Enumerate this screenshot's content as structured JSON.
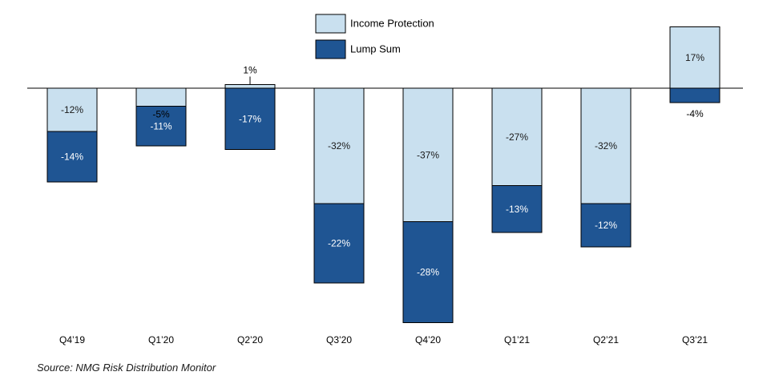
{
  "chart_data": {
    "type": "bar",
    "stacked": true,
    "categories": [
      "Q4’19",
      "Q1’20",
      "Q2’20",
      "Q3’20",
      "Q4’20",
      "Q1’21",
      "Q2’21",
      "Q3’21"
    ],
    "series": [
      {
        "name": "Income Protection",
        "color": "#c9e0ef",
        "values": [
          -12,
          -5,
          1,
          -32,
          -37,
          -27,
          -32,
          17
        ],
        "labels": [
          "-12%",
          "-5%",
          "1%",
          "-32%",
          "-37%",
          "-27%",
          "-32%",
          "17%"
        ]
      },
      {
        "name": "Lump Sum",
        "color": "#1f5593",
        "values": [
          -14,
          -11,
          -17,
          -22,
          -28,
          -13,
          -12,
          -4
        ],
        "labels": [
          "-14%",
          "-11%",
          "-17%",
          "-22%",
          "-28%",
          "-13%",
          "-12%",
          "-4%"
        ]
      }
    ],
    "ylim": [
      -65,
      17
    ],
    "grid": false,
    "legend_position": "top-center",
    "title": "",
    "xlabel": "",
    "ylabel": ""
  },
  "source": "Source: NMG Risk Distribution Monitor"
}
